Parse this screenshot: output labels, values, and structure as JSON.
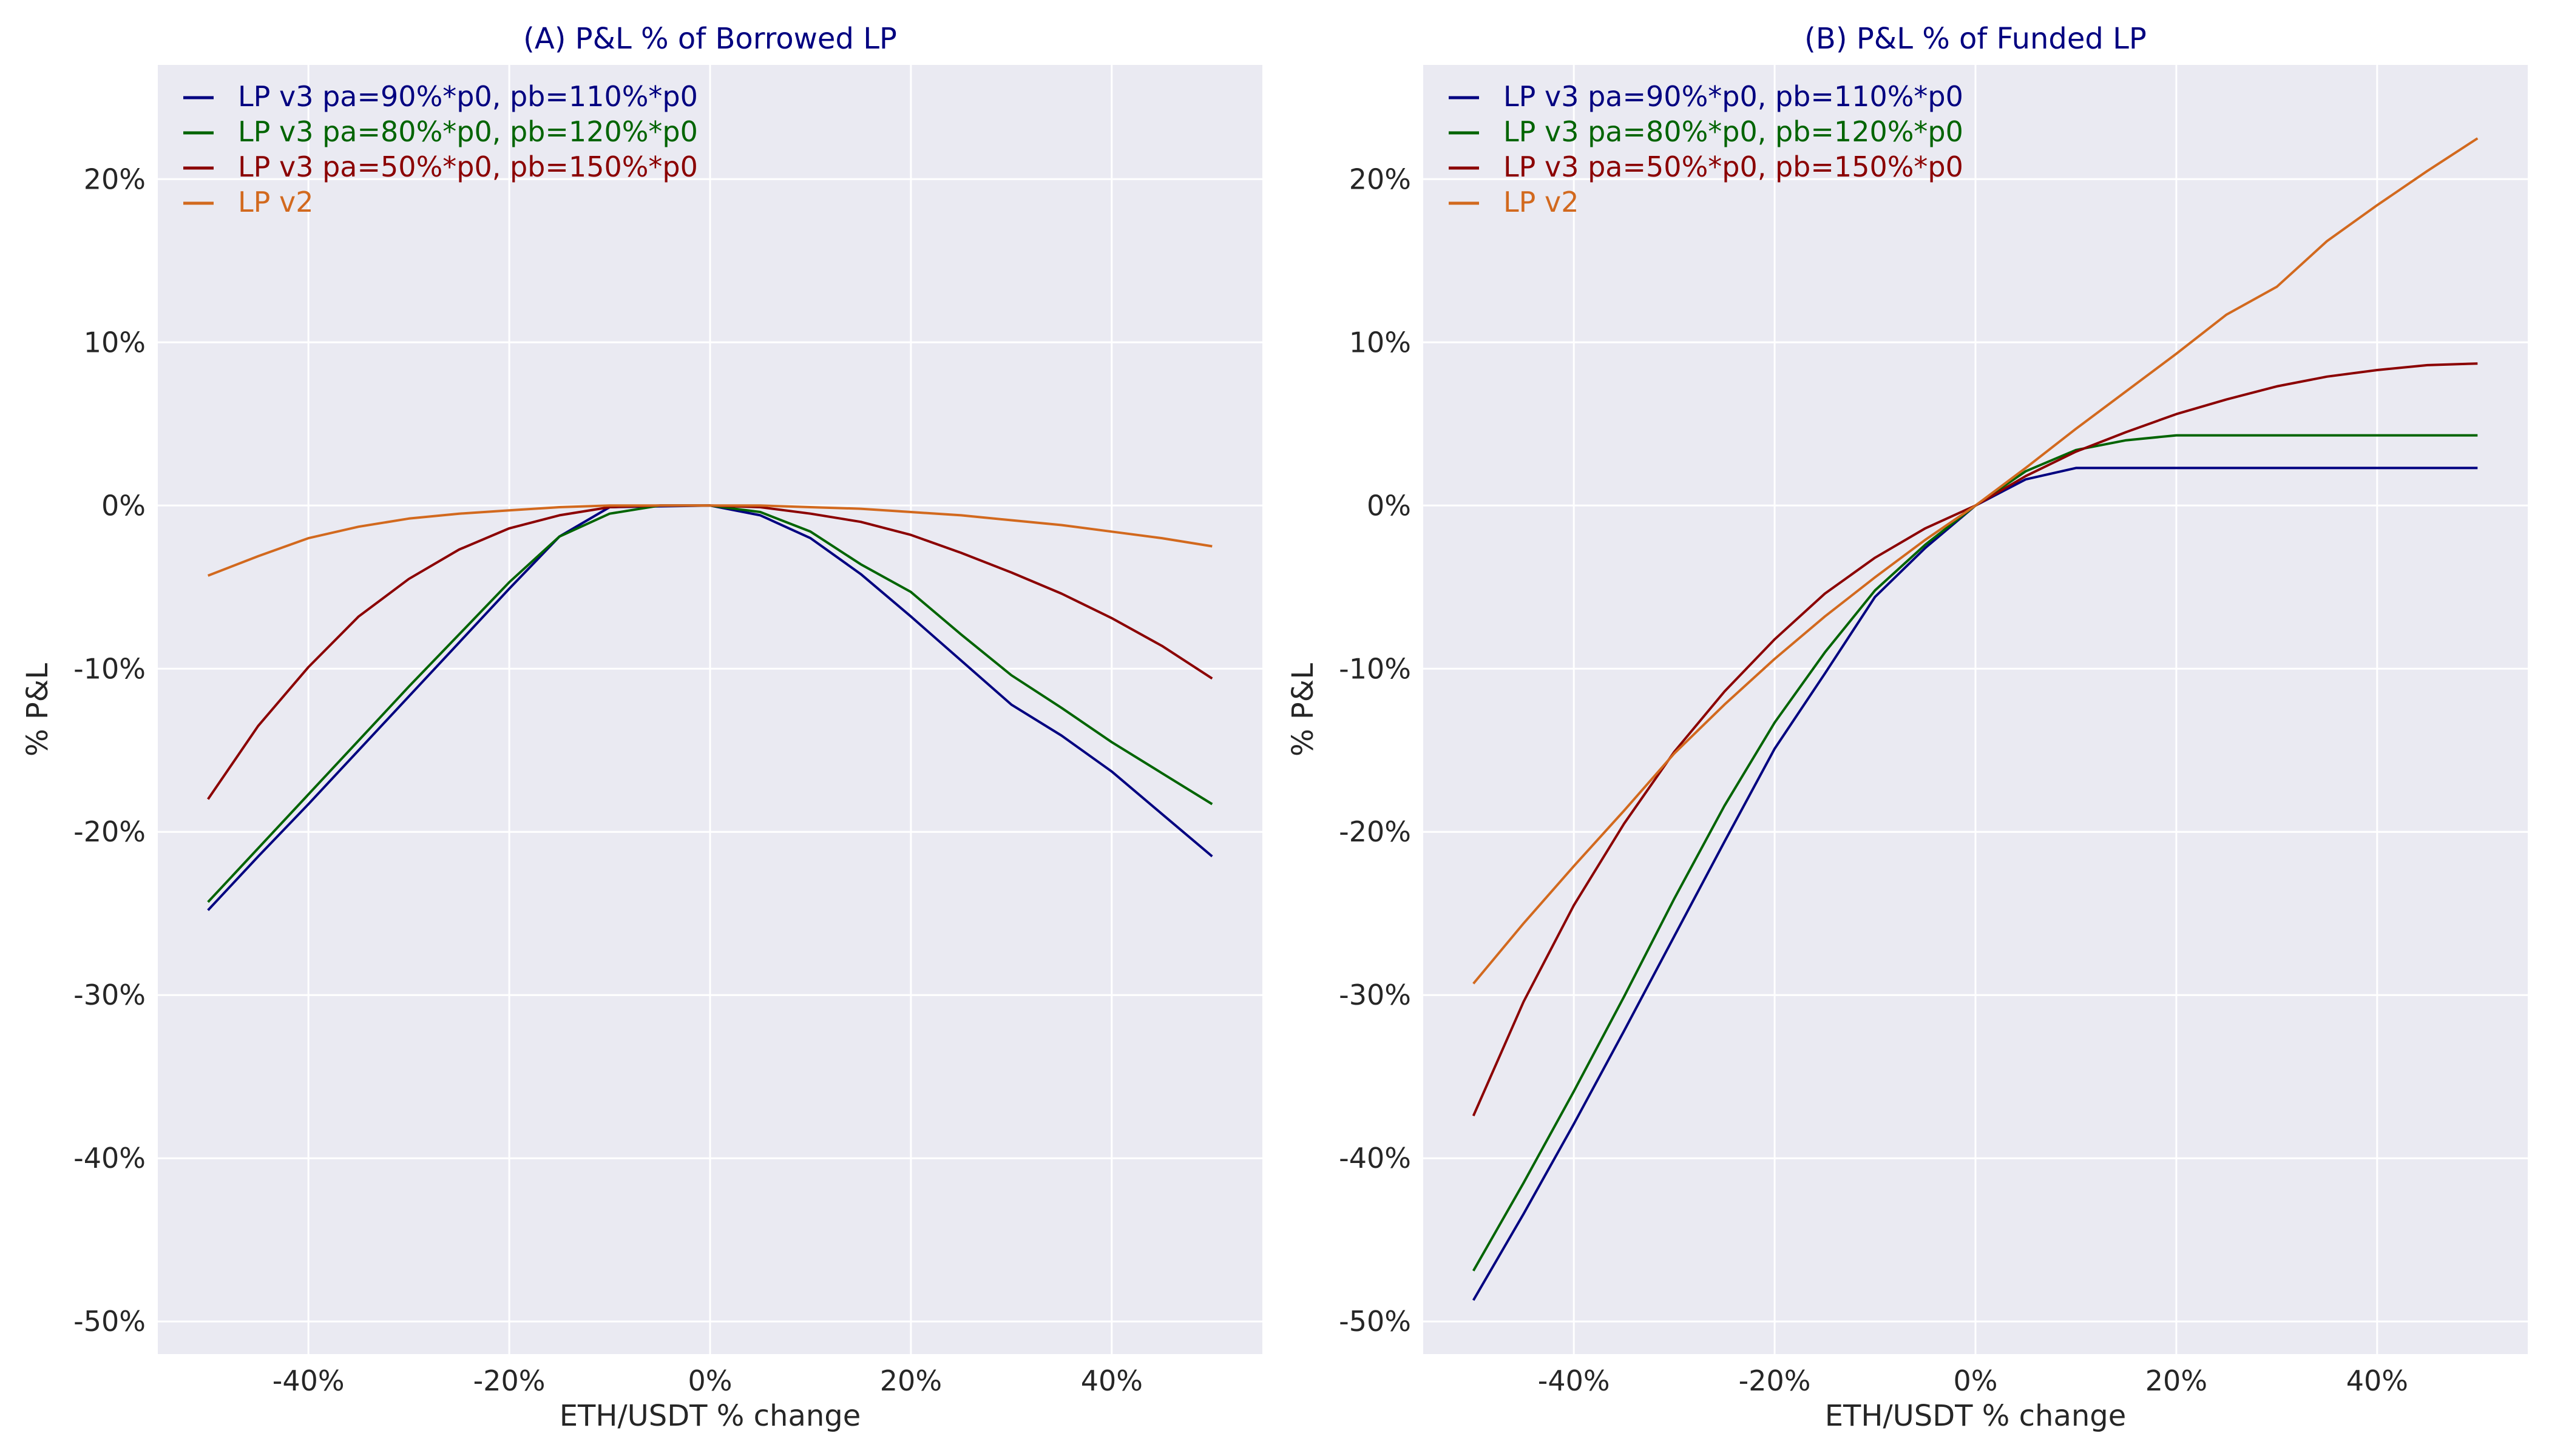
{
  "colors": {
    "background": "#EAEAF2",
    "grid": "#FFFFFF",
    "title": "#000080",
    "text": "#262626"
  },
  "chart_data": [
    {
      "type": "line",
      "title": "(A) P&L % of Borrowed LP",
      "xlabel": "ETH/USDT % change",
      "ylabel": "% P&L",
      "xlim": [
        -55,
        55
      ],
      "ylim": [
        -52,
        27
      ],
      "x_ticks": [
        -40,
        -20,
        0,
        20,
        40
      ],
      "x_tick_labels": [
        "-40%",
        "-20%",
        "0%",
        "20%",
        "40%"
      ],
      "y_ticks": [
        20,
        10,
        0,
        -10,
        -20,
        -30,
        -40,
        -50
      ],
      "y_tick_labels": [
        "20%",
        "10%",
        "0%",
        "-10%",
        "-20%",
        "-30%",
        "-40%",
        "-50%"
      ],
      "grid": true,
      "legend_position": "top-left",
      "x": [
        -50,
        -45,
        -40,
        -35,
        -30,
        -25,
        -20,
        -15,
        -10,
        -5,
        0,
        5,
        10,
        15,
        20,
        25,
        30,
        35,
        40,
        45,
        50
      ],
      "series": [
        {
          "name": "LP v3 pa=90%*p0, pb=110%*p0",
          "color": "#000080",
          "values": [
            -24.8,
            -21.5,
            -18.3,
            -15.0,
            -11.7,
            -8.4,
            -5.1,
            -1.9,
            -0.1,
            -0.05,
            0,
            -0.6,
            -2.0,
            -4.2,
            -6.8,
            -9.5,
            -12.2,
            -14.1,
            -16.3,
            -18.9,
            -21.5
          ]
        },
        {
          "name": "LP v3 pa=80%*p0, pb=120%*p0",
          "color": "#006400",
          "values": [
            -24.3,
            -21.0,
            -17.7,
            -14.4,
            -11.1,
            -7.9,
            -4.7,
            -1.9,
            -0.5,
            0,
            0,
            -0.4,
            -1.6,
            -3.6,
            -5.3,
            -7.9,
            -10.4,
            -12.4,
            -14.5,
            -16.4,
            -18.3
          ]
        },
        {
          "name": "LP v3 pa=50%*p0, pb=150%*p0",
          "color": "#8B0000",
          "values": [
            -18.0,
            -13.5,
            -9.9,
            -6.8,
            -4.5,
            -2.7,
            -1.4,
            -0.6,
            -0.1,
            0,
            0,
            -0.1,
            -0.5,
            -1.0,
            -1.8,
            -2.9,
            -4.1,
            -5.4,
            -6.9,
            -8.6,
            -10.6
          ]
        },
        {
          "name": "LP v2",
          "color": "#D2691E",
          "values": [
            -4.3,
            -3.1,
            -2.0,
            -1.3,
            -0.8,
            -0.5,
            -0.3,
            -0.1,
            0,
            0,
            0,
            0,
            -0.1,
            -0.2,
            -0.4,
            -0.6,
            -0.9,
            -1.2,
            -1.6,
            -2.0,
            -2.5
          ]
        }
      ]
    },
    {
      "type": "line",
      "title": "(B) P&L % of Funded LP",
      "xlabel": "ETH/USDT % change",
      "ylabel": "% P&L",
      "xlim": [
        -55,
        55
      ],
      "ylim": [
        -52,
        27
      ],
      "x_ticks": [
        -40,
        -20,
        0,
        20,
        40
      ],
      "x_tick_labels": [
        "-40%",
        "-20%",
        "0%",
        "20%",
        "40%"
      ],
      "y_ticks": [
        20,
        10,
        0,
        -10,
        -20,
        -30,
        -40,
        -50
      ],
      "y_tick_labels": [
        "20%",
        "10%",
        "0%",
        "-10%",
        "-20%",
        "-30%",
        "-40%",
        "-50%"
      ],
      "grid": true,
      "legend_position": "top-left",
      "x": [
        -50,
        -45,
        -40,
        -35,
        -30,
        -25,
        -20,
        -15,
        -10,
        -5,
        0,
        5,
        10,
        15,
        20,
        25,
        30,
        35,
        40,
        45,
        50
      ],
      "series": [
        {
          "name": "LP v3 pa=90%*p0, pb=110%*p0",
          "color": "#000080",
          "values": [
            -48.7,
            -43.4,
            -37.9,
            -32.2,
            -26.4,
            -20.6,
            -14.9,
            -10.3,
            -5.6,
            -2.6,
            0,
            1.6,
            2.3,
            2.3,
            2.3,
            2.3,
            2.3,
            2.3,
            2.3,
            2.3,
            2.3
          ]
        },
        {
          "name": "LP v3 pa=80%*p0, pb=120%*p0",
          "color": "#006400",
          "values": [
            -46.9,
            -41.5,
            -35.9,
            -30.1,
            -24.1,
            -18.4,
            -13.3,
            -9.0,
            -5.2,
            -2.4,
            0,
            2.1,
            3.4,
            4.0,
            4.3,
            4.3,
            4.3,
            4.3,
            4.3,
            4.3,
            4.3
          ]
        },
        {
          "name": "LP v3 pa=50%*p0, pb=150%*p0",
          "color": "#8B0000",
          "values": [
            -37.4,
            -30.4,
            -24.5,
            -19.5,
            -15.1,
            -11.4,
            -8.2,
            -5.4,
            -3.2,
            -1.4,
            0,
            1.8,
            3.3,
            4.5,
            5.6,
            6.5,
            7.3,
            7.9,
            8.3,
            8.6,
            8.7
          ]
        },
        {
          "name": "LP v2",
          "color": "#D2691E",
          "values": [
            -29.3,
            -25.6,
            -22.1,
            -18.7,
            -15.2,
            -12.2,
            -9.4,
            -6.8,
            -4.4,
            -2.1,
            0,
            2.3,
            4.7,
            7.0,
            9.3,
            11.7,
            13.4,
            16.2,
            18.4,
            20.5,
            22.5
          ]
        }
      ]
    }
  ]
}
